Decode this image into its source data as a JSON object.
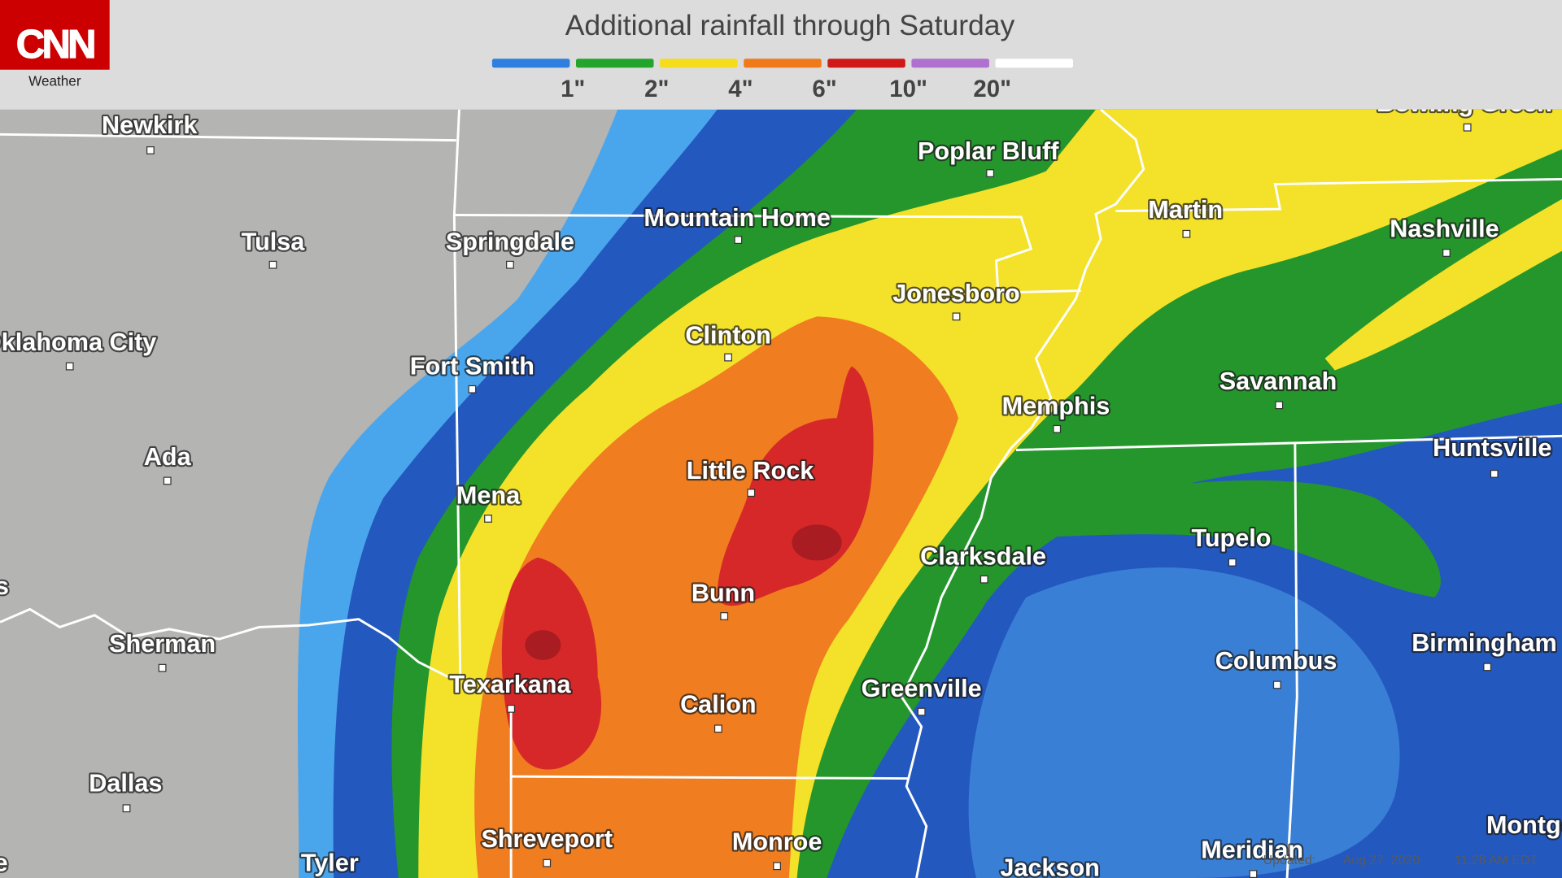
{
  "header": {
    "logo": "CNN",
    "section": "Weather",
    "title": "Additional rainfall through Saturday"
  },
  "legend": {
    "colors": [
      "#2f7fe0",
      "#22a52a",
      "#f5dc1c",
      "#f07a1a",
      "#d01818",
      "#b070d0",
      "#ffffff"
    ],
    "labels": [
      "1\"",
      "2\"",
      "4\"",
      "6\"",
      "10\"",
      "20\""
    ]
  },
  "cities": [
    "Bowling Green",
    "Newkirk",
    "Poplar Bluff",
    "Mountain Home",
    "Martin",
    "Tulsa",
    "Springdale",
    "Nashville",
    "Jonesboro",
    "Clinton",
    "Oklahoma City",
    "Fort Smith",
    "Savannah",
    "Memphis",
    "Huntsville",
    "Ada",
    "Little Rock",
    "Mena",
    "Tupelo",
    "Clarksdale",
    "s",
    "Bunn",
    "Birmingham",
    "Sherman",
    "Columbus",
    "Texarkana",
    "Greenville",
    "Calion",
    "Dallas",
    "Montgomery",
    "Shreveport",
    "Monroe",
    "Meridian",
    "Jackson",
    "Tyler",
    "e"
  ],
  "footer": {
    "updated_label": "Updated:",
    "date": "Aug 27, 2020",
    "time": "11:28 AM EDT"
  }
}
